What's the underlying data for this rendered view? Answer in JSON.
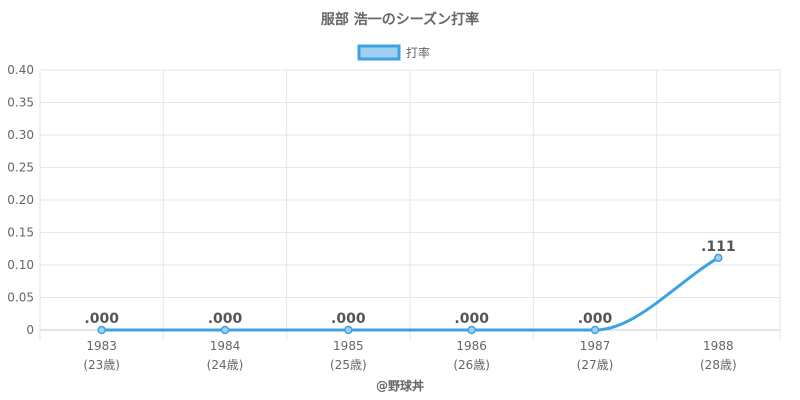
{
  "chart_data": {
    "type": "line",
    "title": "服部 浩一のシーズン打率",
    "categories": [
      "1983",
      "1984",
      "1985",
      "1986",
      "1987",
      "1988"
    ],
    "sub_categories": [
      "(23歳)",
      "(24歳)",
      "(25歳)",
      "(26歳)",
      "(27歳)",
      "(28歳)"
    ],
    "series": [
      {
        "name": "打率",
        "values": [
          0.0,
          0.0,
          0.0,
          0.0,
          0.0,
          0.111
        ],
        "labels": [
          ".000",
          ".000",
          ".000",
          ".000",
          ".000",
          ".111"
        ]
      }
    ],
    "ylim": [
      0,
      0.4
    ],
    "yticks": [
      "0",
      "0.05",
      "0.10",
      "0.15",
      "0.20",
      "0.25",
      "0.30",
      "0.35",
      "0.40"
    ],
    "ytick_values": [
      0,
      0.05,
      0.1,
      0.15,
      0.2,
      0.25,
      0.3,
      0.35,
      0.4
    ],
    "grid": true,
    "legend_position": "top-center",
    "line_color": "#3ea1e2",
    "fill_color": "#9fd0f2",
    "credit": "@野球丼"
  }
}
